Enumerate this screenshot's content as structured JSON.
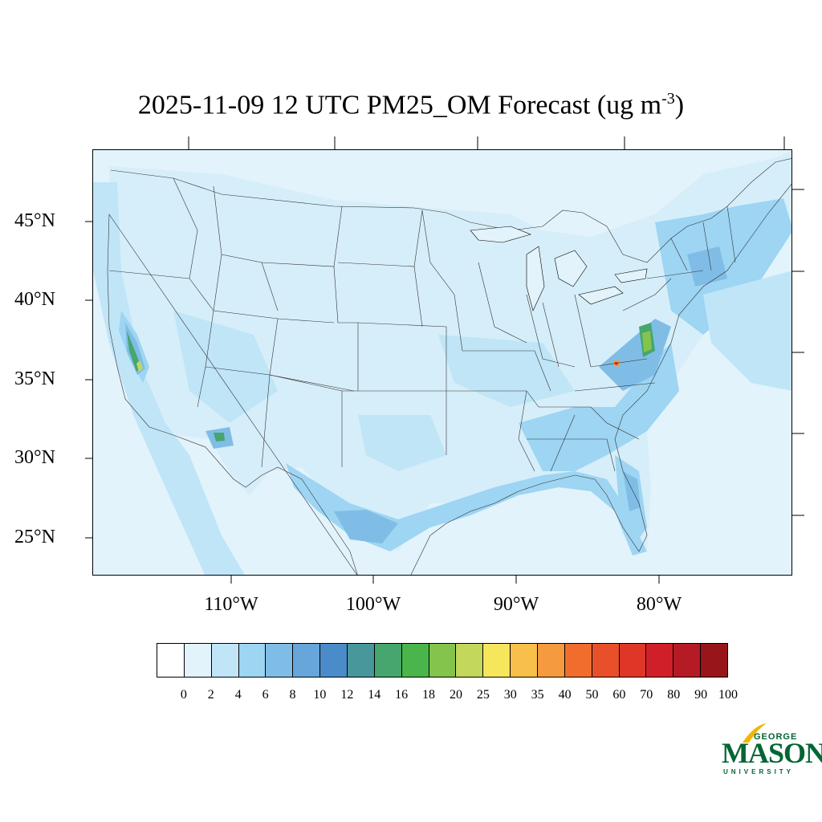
{
  "title": {
    "main": "2025-11-09 12 UTC PM25_OM Forecast (ug m",
    "sup": "-3",
    "end": ")"
  },
  "lat_labels": [
    "45°N",
    "40°N",
    "35°N",
    "30°N",
    "25°N"
  ],
  "lon_labels": [
    "110°W",
    "100°W",
    "90°W",
    "80°W"
  ],
  "colorbar": {
    "labels": [
      "0",
      "2",
      "4",
      "6",
      "8",
      "10",
      "12",
      "14",
      "16",
      "18",
      "20",
      "25",
      "30",
      "35",
      "40",
      "50",
      "60",
      "70",
      "80",
      "90",
      "100"
    ],
    "colors": [
      "#ffffff",
      "#e2f3fb",
      "#bfe5f7",
      "#9dd5f3",
      "#80bde6",
      "#66a6da",
      "#4a8cc9",
      "#48979b",
      "#46a66d",
      "#4ab54a",
      "#84c44c",
      "#c3d75c",
      "#f6e65c",
      "#f8bf4b",
      "#f59a3e",
      "#f06d2e",
      "#e8502c",
      "#df3727",
      "#d11f29",
      "#b51b25",
      "#981619"
    ]
  },
  "map_colors": {
    "ocean": "#e2f3fb",
    "low": "#bfe5f7",
    "mid": "#9dd5f3",
    "high": "#80bde6",
    "higher": "#66a6da",
    "green": "#46a66d",
    "brightgreen": "#84c44c",
    "yellow": "#f6e65c",
    "orange": "#f59a3e",
    "red": "#df3727"
  },
  "logo": {
    "line1": "GEORGE",
    "line2": "MASON",
    "line3": "UNIVERSITY"
  }
}
